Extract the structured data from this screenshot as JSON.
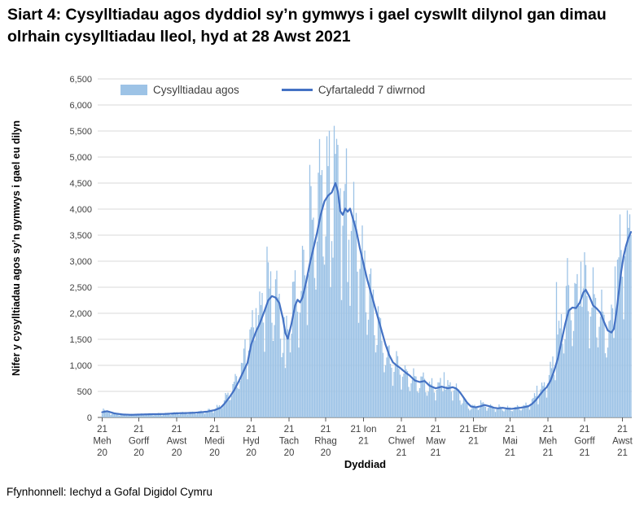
{
  "title": "Siart 4: Cysylltiadau agos dyddiol sy’n gymwys i gael cyswllt dilynol gan dimau olrhain cysylltiadau lleol, hyd at 28 Awst 2021",
  "legend": {
    "bars_label": "Cysylltiadau agos",
    "line_label": "Cyfartaledd 7 diwrnod"
  },
  "axes": {
    "y_title": "Nifer y cysylltiadau agos sy’n gymwys i gael eu dilyn",
    "x_title": "Dyddiad",
    "y_tick_labels": [
      "0",
      "500",
      "1,000",
      "1,500",
      "2,000",
      "2,500",
      "3,000",
      "3,500",
      "4,000",
      "4,500",
      "5,000",
      "5,500",
      "6,000",
      "6,500"
    ],
    "x_tick_labels": [
      [
        "21",
        "Meh",
        "20"
      ],
      [
        "21",
        "Gorff",
        "20"
      ],
      [
        "21",
        "Awst",
        "20"
      ],
      [
        "21",
        "Medi",
        "20"
      ],
      [
        "21",
        "Hyd",
        "20"
      ],
      [
        "21",
        "Tach",
        "20"
      ],
      [
        "21",
        "Rhag",
        "20"
      ],
      [
        "21 Ion",
        "21"
      ],
      [
        "21",
        "Chwef",
        "21"
      ],
      [
        "21",
        "Maw",
        "21"
      ],
      [
        "21 Ebr",
        "21"
      ],
      [
        "21",
        "Mai",
        "21"
      ],
      [
        "21",
        "Meh",
        "21"
      ],
      [
        "21",
        "Gorff",
        "21"
      ],
      [
        "21",
        "Awst",
        "21"
      ]
    ]
  },
  "source": "Ffynhonnell: Iechyd a Gofal Digidol Cymru",
  "colors": {
    "bar": "#9DC3E6",
    "line": "#4472C4",
    "grid": "#D9D9D9",
    "axis": "#595959",
    "tick_text": "#404040"
  },
  "chart_data": {
    "type": "bar",
    "title": "Siart 4: Cysylltiadau agos dyddiol sy’n gymwys i gael cyswllt dilynol gan dimau olrhain cysylltiadau lleol, hyd at 28 Awst 2021",
    "xlabel": "Dyddiad",
    "ylabel": "Nifer y cysylltiadau agos sy’n gymwys i gael eu dilyn",
    "ylim": [
      0,
      6500
    ],
    "y_step": 500,
    "grid": true,
    "legend_position": "top-inside",
    "x_start_date": "21 Meh 20",
    "x_end_date": "28 Awst 21",
    "total_days": 434,
    "tick_day_indices": [
      0,
      30,
      61,
      92,
      122,
      153,
      183,
      214,
      245,
      273,
      304,
      334,
      365,
      395,
      426
    ],
    "series": [
      {
        "name": "Cysylltiadau agos",
        "type": "bar",
        "note": "daily values synthesized from avg_keypoints with weekly_pattern, secondary_pattern and bar_overrides"
      },
      {
        "name": "Cyfartaledd 7 diwrnod",
        "type": "line",
        "note": "7-day average, piecewise-linear through avg_keypoints"
      }
    ],
    "avg_keypoints": [
      [
        0,
        100
      ],
      [
        4,
        120
      ],
      [
        10,
        78
      ],
      [
        17,
        56
      ],
      [
        24,
        50
      ],
      [
        30,
        55
      ],
      [
        41,
        62
      ],
      [
        51,
        66
      ],
      [
        61,
        80
      ],
      [
        72,
        86
      ],
      [
        79,
        95
      ],
      [
        86,
        112
      ],
      [
        92,
        140
      ],
      [
        97,
        185
      ],
      [
        100,
        260
      ],
      [
        104,
        380
      ],
      [
        108,
        520
      ],
      [
        112,
        700
      ],
      [
        116,
        900
      ],
      [
        119,
        1050
      ],
      [
        122,
        1400
      ],
      [
        126,
        1650
      ],
      [
        129,
        1800
      ],
      [
        133,
        2050
      ],
      [
        136,
        2250
      ],
      [
        139,
        2330
      ],
      [
        142,
        2300
      ],
      [
        145,
        2200
      ],
      [
        148,
        1900
      ],
      [
        150,
        1620
      ],
      [
        152,
        1510
      ],
      [
        155,
        1800
      ],
      [
        158,
        2150
      ],
      [
        160,
        2260
      ],
      [
        162,
        2210
      ],
      [
        164,
        2300
      ],
      [
        167,
        2600
      ],
      [
        170,
        2950
      ],
      [
        173,
        3250
      ],
      [
        176,
        3550
      ],
      [
        179,
        3900
      ],
      [
        182,
        4150
      ],
      [
        185,
        4260
      ],
      [
        188,
        4320
      ],
      [
        191,
        4500
      ],
      [
        193,
        4340
      ],
      [
        195,
        3960
      ],
      [
        197,
        3890
      ],
      [
        199,
        4010
      ],
      [
        201,
        3950
      ],
      [
        203,
        4010
      ],
      [
        205,
        3840
      ],
      [
        208,
        3600
      ],
      [
        211,
        3250
      ],
      [
        214,
        2950
      ],
      [
        217,
        2650
      ],
      [
        220,
        2400
      ],
      [
        223,
        2150
      ],
      [
        226,
        1900
      ],
      [
        229,
        1650
      ],
      [
        232,
        1400
      ],
      [
        235,
        1200
      ],
      [
        238,
        1060
      ],
      [
        241,
        1000
      ],
      [
        244,
        950
      ],
      [
        248,
        870
      ],
      [
        252,
        800
      ],
      [
        256,
        710
      ],
      [
        260,
        680
      ],
      [
        264,
        700
      ],
      [
        268,
        610
      ],
      [
        273,
        560
      ],
      [
        278,
        590
      ],
      [
        283,
        560
      ],
      [
        287,
        580
      ],
      [
        290,
        555
      ],
      [
        293,
        480
      ],
      [
        296,
        380
      ],
      [
        299,
        280
      ],
      [
        302,
        210
      ],
      [
        306,
        195
      ],
      [
        310,
        215
      ],
      [
        313,
        240
      ],
      [
        317,
        215
      ],
      [
        321,
        185
      ],
      [
        324,
        175
      ],
      [
        328,
        185
      ],
      [
        331,
        172
      ],
      [
        335,
        165
      ],
      [
        338,
        172
      ],
      [
        342,
        185
      ],
      [
        345,
        195
      ],
      [
        349,
        215
      ],
      [
        352,
        260
      ],
      [
        355,
        330
      ],
      [
        358,
        420
      ],
      [
        361,
        510
      ],
      [
        364,
        580
      ],
      [
        367,
        700
      ],
      [
        370,
        890
      ],
      [
        373,
        1120
      ],
      [
        376,
        1450
      ],
      [
        379,
        1780
      ],
      [
        382,
        2050
      ],
      [
        385,
        2110
      ],
      [
        388,
        2100
      ],
      [
        391,
        2200
      ],
      [
        394,
        2400
      ],
      [
        396,
        2450
      ],
      [
        399,
        2320
      ],
      [
        402,
        2150
      ],
      [
        405,
        2090
      ],
      [
        408,
        2010
      ],
      [
        411,
        1830
      ],
      [
        414,
        1670
      ],
      [
        417,
        1630
      ],
      [
        419,
        1700
      ],
      [
        421,
        2000
      ],
      [
        423,
        2400
      ],
      [
        425,
        2800
      ],
      [
        427,
        3100
      ],
      [
        429,
        3300
      ],
      [
        431,
        3450
      ],
      [
        433,
        3560
      ]
    ],
    "weekly_pattern": [
      0.62,
      0.85,
      1.1,
      1.22,
      1.18,
      1.08,
      0.82
    ],
    "secondary_pattern": [
      1.05,
      0.93,
      1.1,
      0.97,
      1.06,
      0.9,
      1.12,
      0.96,
      1.03,
      0.92,
      1.08
    ],
    "bar_lead_days": 2,
    "bar_overrides": [
      [
        1,
        170
      ],
      [
        117,
        1500
      ],
      [
        126,
        2100
      ],
      [
        135,
        3280
      ],
      [
        150,
        950
      ],
      [
        170,
        4850
      ],
      [
        177,
        4700
      ],
      [
        184,
        5400
      ],
      [
        187,
        2500
      ],
      [
        190,
        5600
      ],
      [
        192,
        5350
      ],
      [
        195,
        4400
      ],
      [
        198,
        4350
      ],
      [
        201,
        2600
      ],
      [
        233,
        1150
      ],
      [
        248,
        1000
      ],
      [
        280,
        870
      ],
      [
        310,
        330
      ],
      [
        356,
        610
      ],
      [
        372,
        2600
      ],
      [
        381,
        3060
      ],
      [
        392,
        2990
      ],
      [
        420,
        2900
      ],
      [
        429,
        3250
      ],
      [
        431,
        3640
      ],
      [
        432,
        3900
      ],
      [
        433,
        3500
      ]
    ]
  }
}
